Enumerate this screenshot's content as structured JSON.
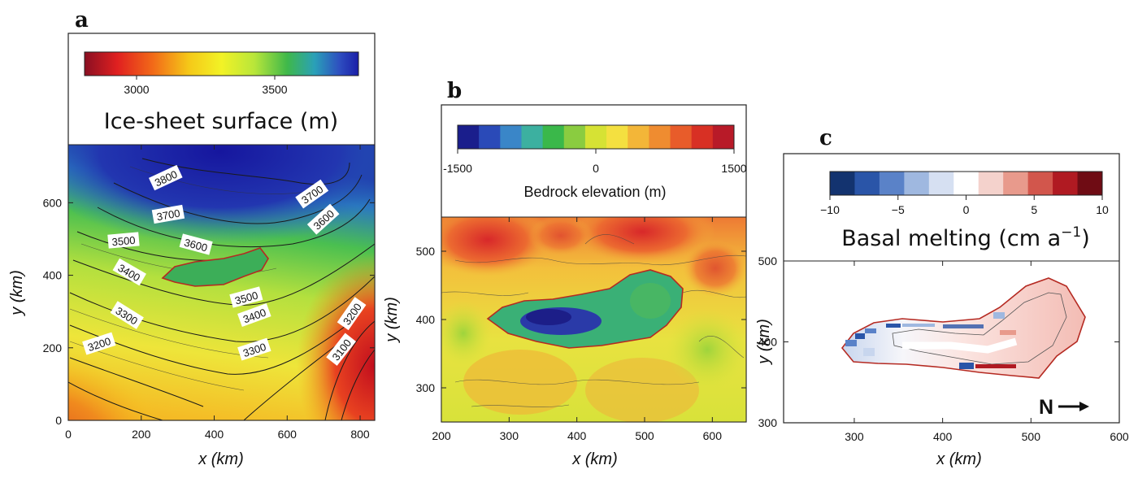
{
  "chart_data": [
    {
      "panel": "a",
      "type": "heatmap",
      "colorbar": {
        "title": "Ice-sheet surface (m)",
        "ticks": [
          "3000",
          "3500"
        ],
        "colors": [
          "#8a0f22",
          "#e02020",
          "#f26a18",
          "#f5c818",
          "#f2f226",
          "#b8e63a",
          "#3fb84a",
          "#2aa0b8",
          "#2e4fc0",
          "#1a1ea8"
        ]
      },
      "xlabel": "x (km)",
      "ylabel": "y (km)",
      "xlim": [
        0,
        840
      ],
      "ylim": [
        0,
        760
      ],
      "xticks": [
        0,
        200,
        400,
        600,
        800
      ],
      "yticks": [
        0,
        200,
        400,
        600
      ],
      "contour_labels": [
        "3800",
        "3700",
        "3700",
        "3600",
        "3600",
        "3500",
        "3500",
        "3400",
        "3400",
        "3300",
        "3300",
        "3200",
        "3200",
        "3100"
      ]
    },
    {
      "panel": "b",
      "type": "heatmap",
      "colorbar": {
        "title": "Bedrock elevation (m)",
        "ticks": [
          "-1500",
          "0",
          "1500"
        ],
        "colors": [
          "#1a1e8c",
          "#2a4ab8",
          "#3a86c8",
          "#3cb0a0",
          "#3ab84a",
          "#8acc40",
          "#d6e234",
          "#f4e040",
          "#f3b638",
          "#ef8c30",
          "#e85c2a",
          "#d83024",
          "#b81a28"
        ]
      },
      "xlabel": "x (km)",
      "ylabel": "y (km)",
      "xlim": [
        200,
        650
      ],
      "ylim": [
        250,
        550
      ],
      "xticks": [
        200,
        300,
        400,
        500,
        600
      ],
      "yticks": [
        300,
        400,
        500
      ]
    },
    {
      "panel": "c",
      "type": "heatmap",
      "colorbar": {
        "title": "Basal melting (cm a",
        "title_sup": "−1",
        "title_end": ")",
        "ticks": [
          "−10",
          "−5",
          "0",
          "5",
          "10"
        ],
        "colors": [
          "#13336f",
          "#2a55a8",
          "#5a82c8",
          "#9fb8e0",
          "#d6e0f2",
          "#ffffff",
          "#f4d2cc",
          "#e89a8c",
          "#d2564c",
          "#b01a22",
          "#6f0c14"
        ]
      },
      "xlabel": "x (km)",
      "ylabel": "y (km)",
      "xlim": [
        220,
        600
      ],
      "ylim": [
        300,
        500
      ],
      "xticks": [
        300,
        400,
        500,
        600
      ],
      "yticks": [
        300,
        400,
        500
      ],
      "annotation": "N"
    }
  ]
}
